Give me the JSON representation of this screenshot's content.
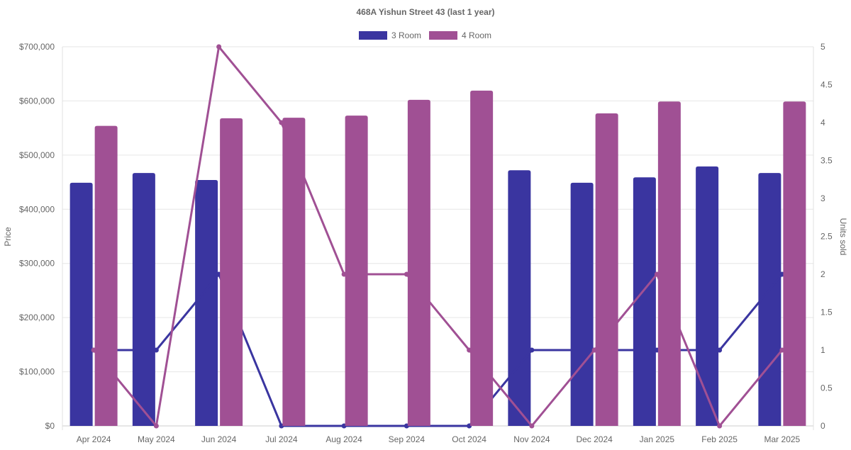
{
  "chart_data": {
    "type": "bar",
    "title": "468A Yishun Street 43 (last 1 year)",
    "categories": [
      "Apr 2024",
      "May 2024",
      "Jun 2024",
      "Jul 2024",
      "Aug 2024",
      "Sep 2024",
      "Oct 2024",
      "Nov 2024",
      "Dec 2024",
      "Jan 2025",
      "Feb 2025",
      "Mar 2025"
    ],
    "ylabel": "Price",
    "y2label": "Units sold",
    "ylim": [
      0,
      700000
    ],
    "y2lim": [
      0,
      5
    ],
    "yticks": [
      "$0",
      "$100,000",
      "$200,000",
      "$300,000",
      "$400,000",
      "$500,000",
      "$600,000",
      "$700,000"
    ],
    "y2ticks": [
      "0",
      "0.5",
      "1",
      "1.5",
      "2",
      "2.5",
      "3",
      "3.5",
      "4",
      "4.5",
      "5"
    ],
    "legend_position": "top",
    "grid": true,
    "series": [
      {
        "name": "3 Room",
        "color": "#3a35a0",
        "type": "bar",
        "axis": "price",
        "values": [
          449000,
          467000,
          454000,
          null,
          null,
          null,
          null,
          472000,
          449000,
          459000,
          479000,
          467000
        ]
      },
      {
        "name": "4 Room",
        "color": "#a05094",
        "type": "bar",
        "axis": "price",
        "values": [
          554000,
          null,
          568000,
          569000,
          573000,
          602000,
          619000,
          null,
          577000,
          599000,
          null,
          599000
        ]
      },
      {
        "name": "3 Room",
        "color": "#3a35a0",
        "type": "line",
        "axis": "units",
        "values": [
          1,
          1,
          2,
          0,
          0,
          0,
          0,
          1,
          1,
          1,
          1,
          2
        ]
      },
      {
        "name": "4 Room",
        "color": "#a05094",
        "type": "line",
        "axis": "units",
        "values": [
          1,
          0,
          5,
          4,
          2,
          2,
          1,
          0,
          1,
          2,
          0,
          1
        ]
      }
    ]
  }
}
